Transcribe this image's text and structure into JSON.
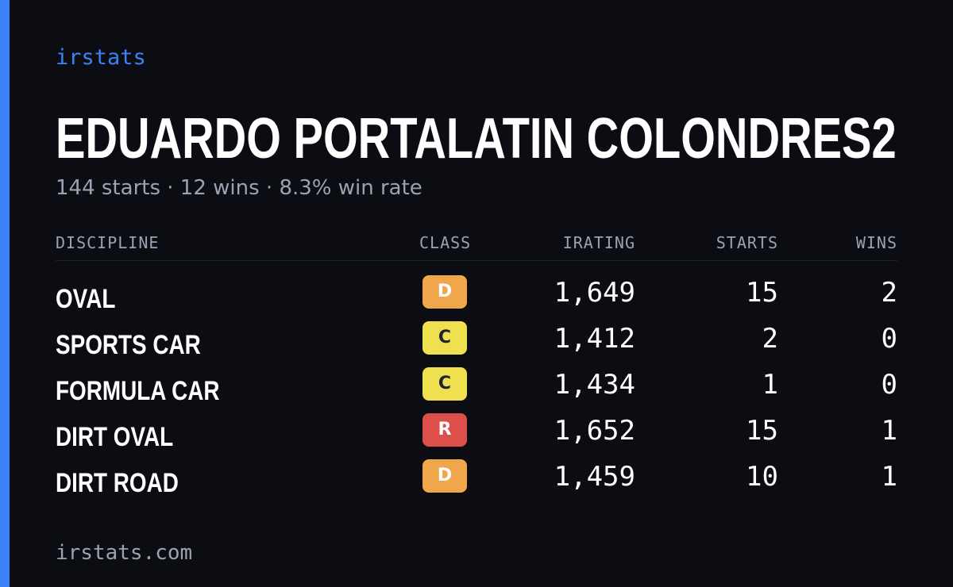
{
  "brand": "irstats",
  "driver": {
    "name": "EDUARDO PORTALATIN COLONDRES2",
    "summary": "144 starts · 12 wins · 8.3% win rate"
  },
  "table": {
    "headers": {
      "discipline": "DISCIPLINE",
      "class": "CLASS",
      "irating": "IRATING",
      "starts": "STARTS",
      "wins": "WINS"
    },
    "rows": [
      {
        "discipline": "OVAL",
        "class": "D",
        "irating": "1,649",
        "starts": "15",
        "wins": "2"
      },
      {
        "discipline": "SPORTS CAR",
        "class": "C",
        "irating": "1,412",
        "starts": "2",
        "wins": "0"
      },
      {
        "discipline": "FORMULA CAR",
        "class": "C",
        "irating": "1,434",
        "starts": "1",
        "wins": "0"
      },
      {
        "discipline": "DIRT OVAL",
        "class": "R",
        "irating": "1,652",
        "starts": "15",
        "wins": "1"
      },
      {
        "discipline": "DIRT ROAD",
        "class": "D",
        "irating": "1,459",
        "starts": "10",
        "wins": "1"
      }
    ]
  },
  "class_colors": {
    "R": "#dc4f4a",
    "D": "#f0a64a",
    "C": "#eee04f"
  },
  "colors": {
    "accent": "#3b82f6",
    "background": "#0b0d13",
    "muted_text": "#9aa3b2"
  },
  "footer": "irstats.com"
}
